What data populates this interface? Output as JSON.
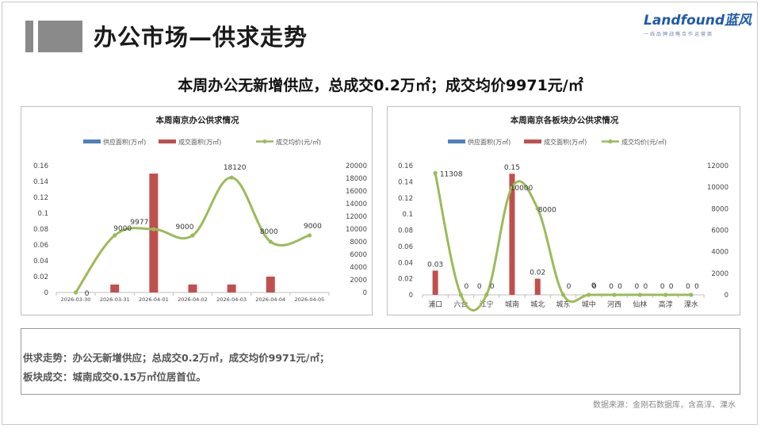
{
  "page": {
    "title": "办公市场—供求走势",
    "headline": "本周办公无新增供应，总成交0.2万㎡；成交均价9971元/㎡",
    "logo": {
      "main": "Landfound蓝风",
      "sub": "一线品牌战略合作运营商"
    },
    "summary": [
      "供求走势：办公无新增供应；总成交0.2万㎡，成交均价9971元/㎡；",
      "板块成交：城南成交0.15万㎡位居首位。"
    ],
    "source": "数据来源：金刚石数据库，含高淳、溧水",
    "colors": {
      "supply": "#4f81bd",
      "deal": "#c0504d",
      "price": "#9bbb59"
    }
  },
  "chart_data": [
    {
      "type": "bar",
      "title": "本周南京办公供求情况",
      "legend": [
        "供应面积(万㎡)",
        "成交面积(万㎡)",
        "成交均价(元/㎡)"
      ],
      "legend_position": "top",
      "categories": [
        "2026-03-30",
        "2026-03-31",
        "2026-04-01",
        "2026-04-02",
        "2026-04-03",
        "2026-04-04",
        "2026-04-05"
      ],
      "series": [
        {
          "name": "供应面积(万㎡)",
          "type": "bar",
          "axis": "left",
          "values": [
            0,
            0,
            0,
            0,
            0,
            0,
            0
          ]
        },
        {
          "name": "成交面积(万㎡)",
          "type": "bar",
          "axis": "left",
          "values": [
            0,
            0.01,
            0.15,
            0.01,
            0.01,
            0.02,
            0
          ]
        },
        {
          "name": "成交均价(元/㎡)",
          "type": "line",
          "smooth": true,
          "axis": "right",
          "values": [
            0,
            9000,
            9977,
            9000,
            18120,
            8000,
            9000
          ]
        }
      ],
      "data_labels": [
        "0",
        "9000",
        "9977",
        "9000",
        "18120",
        "8000",
        "9000"
      ],
      "ylim_left": [
        0,
        0.16
      ],
      "yticks_left": [
        "0",
        "0.02",
        "0.04",
        "0.06",
        "0.08",
        "0.1",
        "0.12",
        "0.14",
        "0.16"
      ],
      "ylim_right": [
        0,
        20000
      ],
      "yticks_right": [
        "0",
        "2000",
        "4000",
        "6000",
        "8000",
        "10000",
        "12000",
        "14000",
        "16000",
        "18000",
        "20000"
      ],
      "grid": false
    },
    {
      "type": "bar",
      "title": "本周南京各板块办公供求情况",
      "legend": [
        "供应面积(万㎡)",
        "成交面积(万㎡)",
        "成交均价(元/㎡)"
      ],
      "legend_position": "top",
      "categories": [
        "浦口",
        "六合",
        "江宁",
        "城南",
        "城北",
        "城东",
        "城中",
        "河西",
        "仙林",
        "高淳",
        "溧水"
      ],
      "series": [
        {
          "name": "供应面积(万㎡)",
          "type": "bar",
          "axis": "left",
          "values": [
            0,
            0,
            0,
            0,
            0,
            0,
            0,
            0,
            0,
            0,
            0
          ]
        },
        {
          "name": "成交面积(万㎡)",
          "type": "bar",
          "axis": "left",
          "values": [
            0.03,
            0,
            0,
            0.15,
            0.02,
            0,
            0,
            0,
            0,
            0,
            0
          ]
        },
        {
          "name": "成交均价(元/㎡)",
          "type": "line",
          "smooth": true,
          "axis": "right",
          "values": [
            11308,
            0,
            0,
            10000,
            8000,
            0,
            0,
            0,
            0,
            0,
            0
          ]
        }
      ],
      "bar_labels": [
        "0.03",
        "0",
        "0",
        "0.15",
        "0.02",
        "0",
        "0",
        "0",
        "0",
        "0",
        "0"
      ],
      "line_labels": [
        "11308",
        "",
        "0",
        "10000",
        "8000",
        "",
        "0",
        "0",
        "0",
        "0",
        "0"
      ],
      "ylim_left": [
        0,
        0.16
      ],
      "yticks_left": [
        "0",
        "0.02",
        "0.04",
        "0.06",
        "0.08",
        "0.1",
        "0.12",
        "0.14",
        "0.16"
      ],
      "ylim_right": [
        0,
        12000
      ],
      "yticks_right": [
        "0",
        "2000",
        "4000",
        "6000",
        "8000",
        "10000",
        "12000"
      ],
      "grid": false
    }
  ]
}
